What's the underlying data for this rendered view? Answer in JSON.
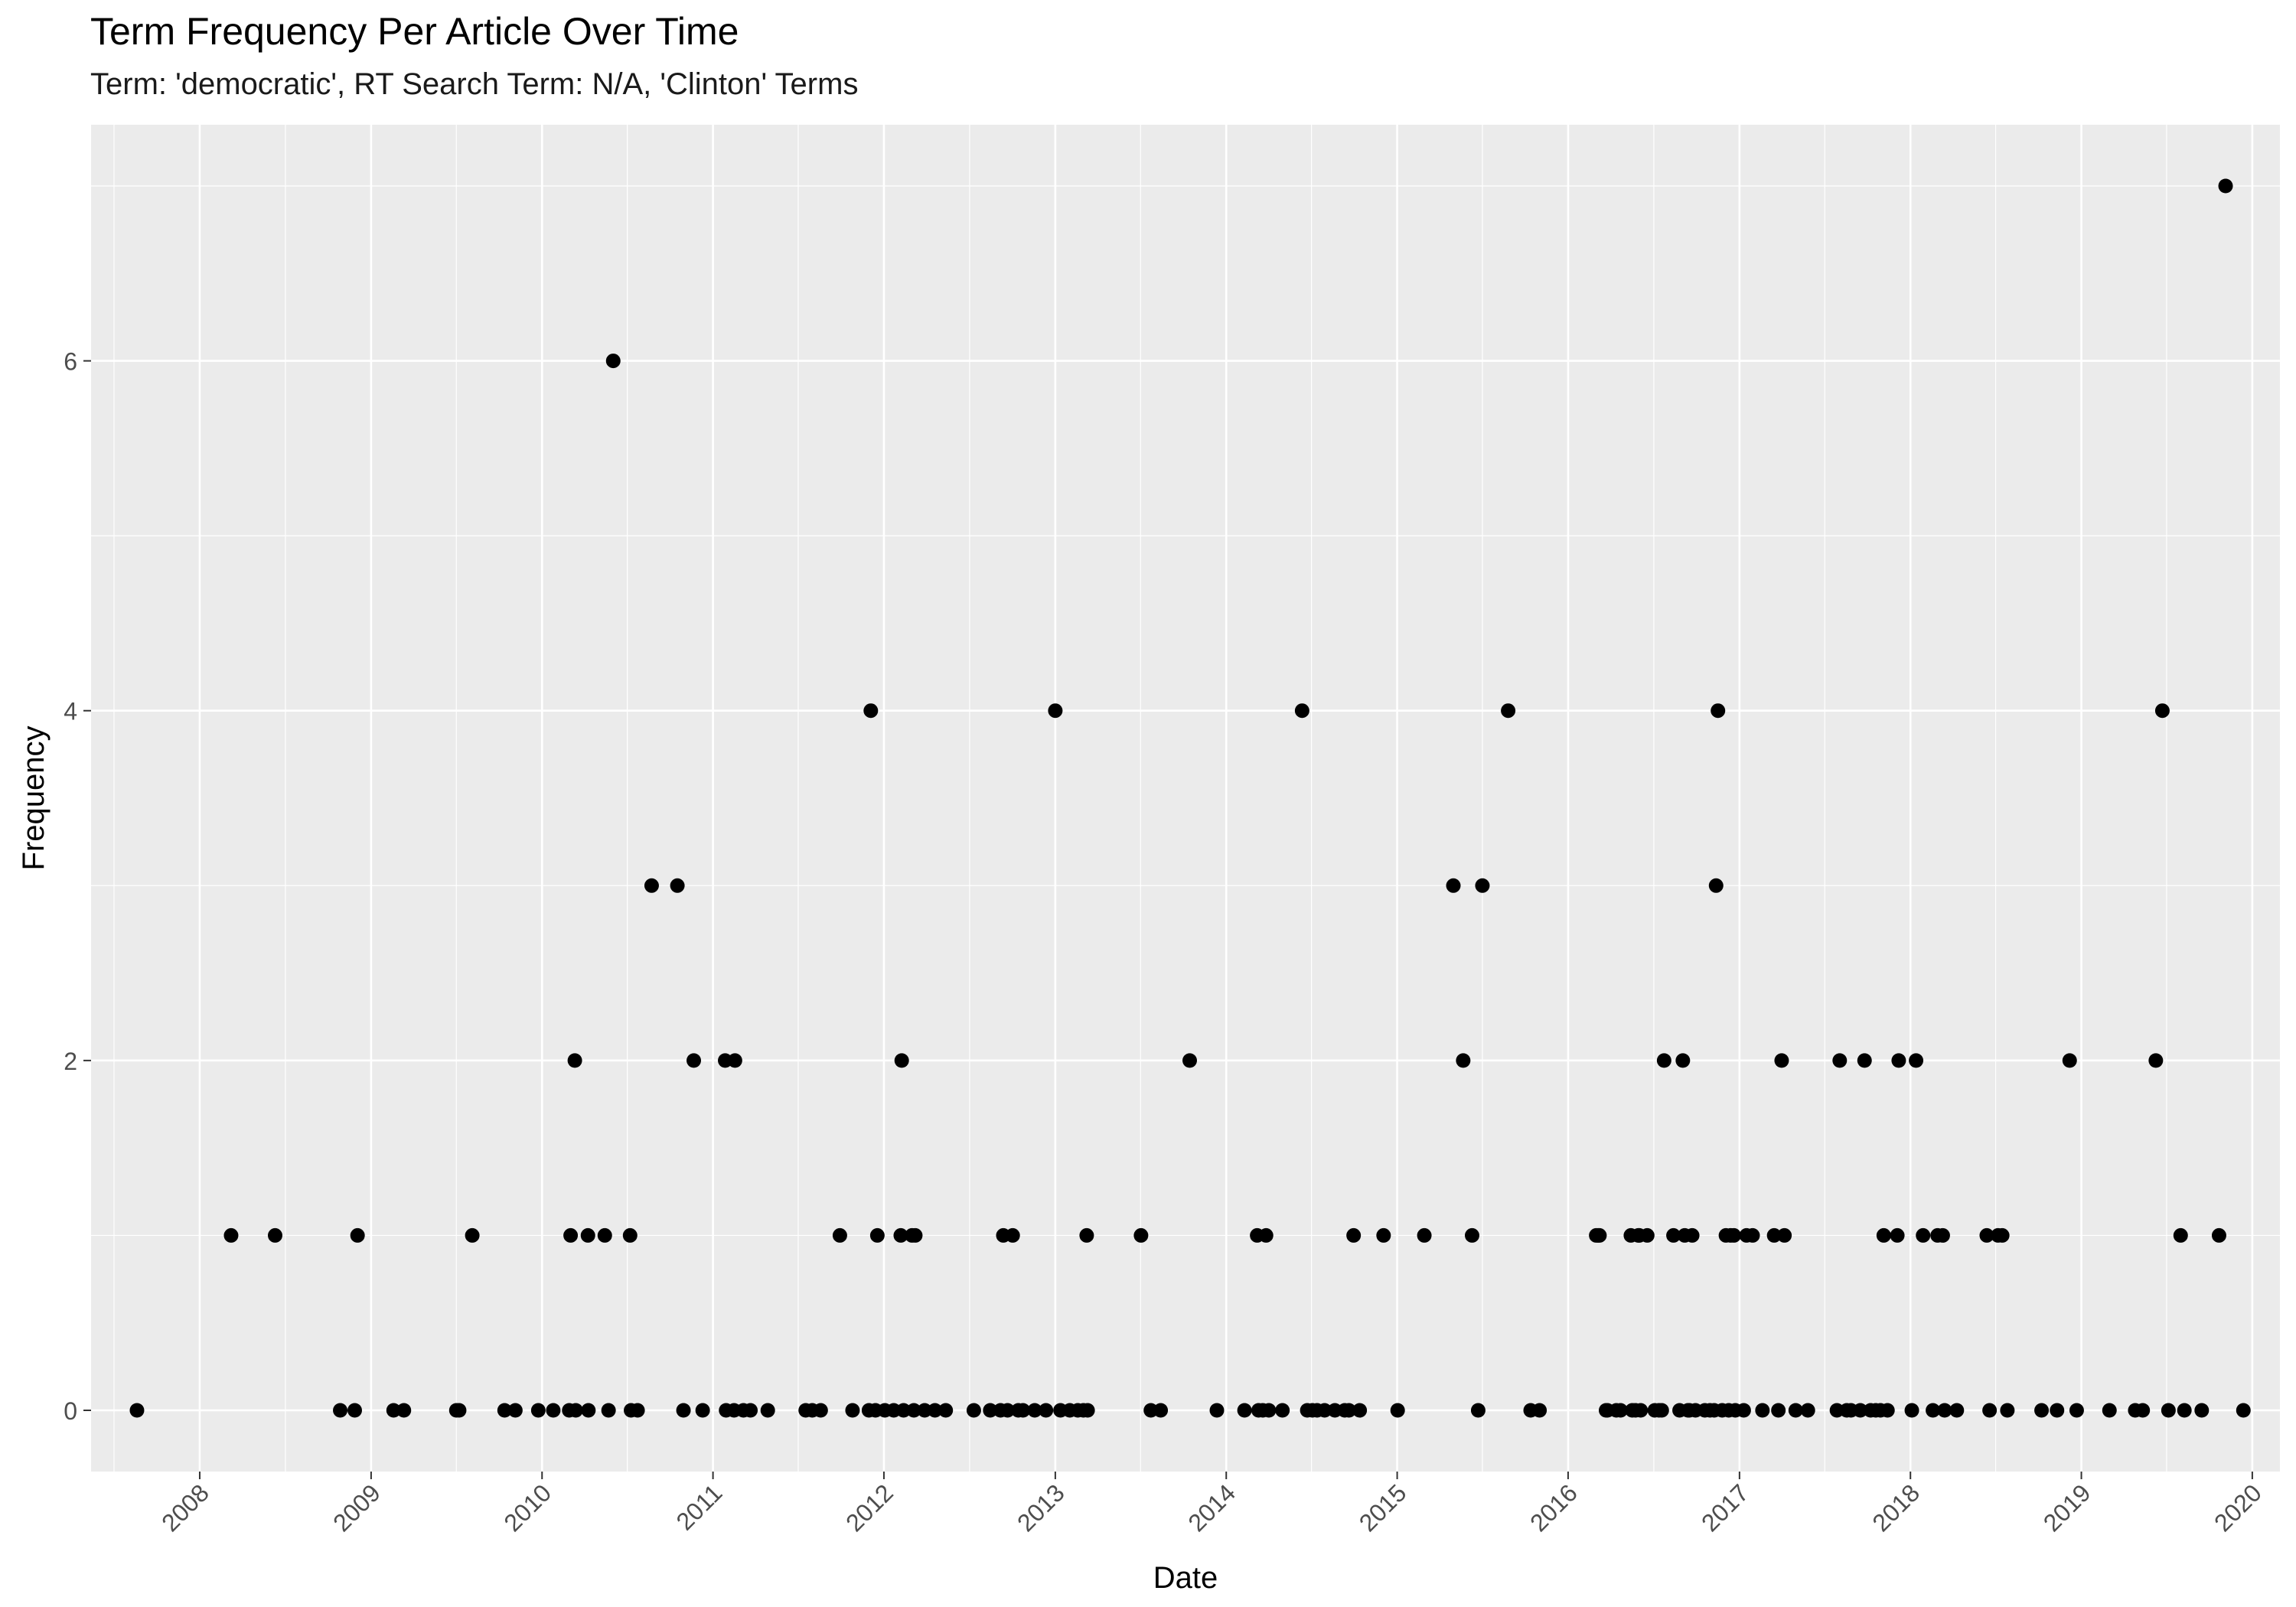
{
  "chart_data": {
    "type": "scatter",
    "title": "Term Frequency Per Article Over Time",
    "subtitle": "Term: 'democratic', RT Search Term: N/A, 'Clinton' Terms",
    "xlabel": "Date",
    "ylabel": "Frequency",
    "x_type": "date",
    "xlim": [
      "2007-05-14",
      "2020-02-29"
    ],
    "ylim": [
      -0.35,
      7.35
    ],
    "x_ticks": [
      "2008",
      "2009",
      "2010",
      "2011",
      "2012",
      "2013",
      "2014",
      "2015",
      "2016",
      "2017",
      "2018",
      "2019",
      "2020"
    ],
    "y_ticks": [
      "0",
      "2",
      "4",
      "6"
    ],
    "grid": true,
    "legend": "none",
    "colors": {
      "panel": "#EBEBEB",
      "grid": "#FFFFFF",
      "point": "#000000",
      "axis_text": "#4D4D4D"
    },
    "series": [
      {
        "points": [
          [
            "2007-08-20",
            0
          ],
          [
            "2008-03-08",
            1
          ],
          [
            "2008-06-10",
            1
          ],
          [
            "2008-10-27",
            0
          ],
          [
            "2008-11-27",
            0
          ],
          [
            "2008-12-03",
            1
          ],
          [
            "2009-02-18",
            0
          ],
          [
            "2009-03-12",
            0
          ],
          [
            "2009-07-02",
            0
          ],
          [
            "2009-07-08",
            0
          ],
          [
            "2009-08-05",
            1
          ],
          [
            "2009-10-13",
            0
          ],
          [
            "2009-11-05",
            0
          ],
          [
            "2009-12-24",
            0
          ],
          [
            "2010-01-25",
            0
          ],
          [
            "2010-02-28",
            0
          ],
          [
            "2010-03-03",
            1
          ],
          [
            "2010-03-12",
            2
          ],
          [
            "2010-03-14",
            0
          ],
          [
            "2010-04-09",
            1
          ],
          [
            "2010-04-10",
            0
          ],
          [
            "2010-05-15",
            1
          ],
          [
            "2010-05-23",
            0
          ],
          [
            "2010-06-02",
            6
          ],
          [
            "2010-07-08",
            1
          ],
          [
            "2010-07-10",
            0
          ],
          [
            "2010-07-24",
            0
          ],
          [
            "2010-08-23",
            3
          ],
          [
            "2010-10-17",
            3
          ],
          [
            "2010-10-30",
            0
          ],
          [
            "2010-11-21",
            2
          ],
          [
            "2010-12-10",
            0
          ],
          [
            "2011-01-27",
            2
          ],
          [
            "2011-01-29",
            0
          ],
          [
            "2011-02-15",
            0
          ],
          [
            "2011-02-17",
            2
          ],
          [
            "2011-03-07",
            0
          ],
          [
            "2011-03-22",
            0
          ],
          [
            "2011-04-28",
            0
          ],
          [
            "2011-07-18",
            0
          ],
          [
            "2011-08-01",
            0
          ],
          [
            "2011-08-19",
            0
          ],
          [
            "2011-09-29",
            1
          ],
          [
            "2011-10-26",
            0
          ],
          [
            "2011-11-30",
            0
          ],
          [
            "2011-12-04",
            4
          ],
          [
            "2011-12-14",
            0
          ],
          [
            "2011-12-18",
            1
          ],
          [
            "2012-01-03",
            0
          ],
          [
            "2012-01-22",
            0
          ],
          [
            "2012-02-06",
            1
          ],
          [
            "2012-02-08",
            2
          ],
          [
            "2012-02-12",
            0
          ],
          [
            "2012-03-01",
            1
          ],
          [
            "2012-03-05",
            0
          ],
          [
            "2012-03-08",
            1
          ],
          [
            "2012-03-28",
            0
          ],
          [
            "2012-04-19",
            0
          ],
          [
            "2012-05-12",
            0
          ],
          [
            "2012-07-11",
            0
          ],
          [
            "2012-08-15",
            0
          ],
          [
            "2012-09-06",
            0
          ],
          [
            "2012-09-12",
            1
          ],
          [
            "2012-09-21",
            0
          ],
          [
            "2012-10-02",
            1
          ],
          [
            "2012-10-14",
            0
          ],
          [
            "2012-10-24",
            0
          ],
          [
            "2012-11-18",
            0
          ],
          [
            "2012-12-12",
            0
          ],
          [
            "2013-01-01",
            4
          ],
          [
            "2013-01-12",
            0
          ],
          [
            "2013-02-01",
            0
          ],
          [
            "2013-02-18",
            0
          ],
          [
            "2013-03-02",
            0
          ],
          [
            "2013-03-09",
            1
          ],
          [
            "2013-03-11",
            0
          ],
          [
            "2013-07-03",
            1
          ],
          [
            "2013-07-24",
            0
          ],
          [
            "2013-08-14",
            0
          ],
          [
            "2013-10-15",
            2
          ],
          [
            "2013-12-12",
            0
          ],
          [
            "2014-02-09",
            0
          ],
          [
            "2014-03-08",
            1
          ],
          [
            "2014-03-11",
            0
          ],
          [
            "2014-03-20",
            0
          ],
          [
            "2014-03-27",
            1
          ],
          [
            "2014-04-02",
            0
          ],
          [
            "2014-05-01",
            0
          ],
          [
            "2014-06-12",
            4
          ],
          [
            "2014-06-23",
            0
          ],
          [
            "2014-07-04",
            0
          ],
          [
            "2014-07-14",
            0
          ],
          [
            "2014-07-30",
            0
          ],
          [
            "2014-08-21",
            0
          ],
          [
            "2014-09-11",
            0
          ],
          [
            "2014-09-20",
            0
          ],
          [
            "2014-09-30",
            1
          ],
          [
            "2014-10-13",
            0
          ],
          [
            "2014-12-03",
            1
          ],
          [
            "2015-01-02",
            0
          ],
          [
            "2015-02-28",
            1
          ],
          [
            "2015-05-01",
            3
          ],
          [
            "2015-05-22",
            2
          ],
          [
            "2015-06-10",
            1
          ],
          [
            "2015-06-23",
            0
          ],
          [
            "2015-07-02",
            3
          ],
          [
            "2015-08-26",
            4
          ],
          [
            "2015-10-13",
            0
          ],
          [
            "2015-11-01",
            0
          ],
          [
            "2016-03-01",
            1
          ],
          [
            "2016-03-05",
            1
          ],
          [
            "2016-03-08",
            1
          ],
          [
            "2016-03-22",
            0
          ],
          [
            "2016-03-25",
            0
          ],
          [
            "2016-04-13",
            0
          ],
          [
            "2016-04-22",
            0
          ],
          [
            "2016-05-14",
            1
          ],
          [
            "2016-05-17",
            0
          ],
          [
            "2016-05-24",
            0
          ],
          [
            "2016-05-30",
            1
          ],
          [
            "2016-06-01",
            1
          ],
          [
            "2016-06-04",
            0
          ],
          [
            "2016-06-18",
            1
          ],
          [
            "2016-07-04",
            0
          ],
          [
            "2016-07-13",
            0
          ],
          [
            "2016-07-19",
            0
          ],
          [
            "2016-07-24",
            2
          ],
          [
            "2016-08-13",
            1
          ],
          [
            "2016-08-26",
            0
          ],
          [
            "2016-09-02",
            2
          ],
          [
            "2016-09-06",
            1
          ],
          [
            "2016-09-13",
            0
          ],
          [
            "2016-09-16",
            0
          ],
          [
            "2016-09-22",
            1
          ],
          [
            "2016-09-29",
            0
          ],
          [
            "2016-10-19",
            0
          ],
          [
            "2016-10-30",
            0
          ],
          [
            "2016-11-08",
            0
          ],
          [
            "2016-11-12",
            3
          ],
          [
            "2016-11-16",
            4
          ],
          [
            "2016-11-25",
            0
          ],
          [
            "2016-12-03",
            1
          ],
          [
            "2016-12-09",
            0
          ],
          [
            "2016-12-13",
            1
          ],
          [
            "2016-12-20",
            1
          ],
          [
            "2016-12-23",
            0
          ],
          [
            "2017-01-10",
            0
          ],
          [
            "2017-01-16",
            1
          ],
          [
            "2017-01-29",
            1
          ],
          [
            "2017-02-19",
            0
          ],
          [
            "2017-03-16",
            1
          ],
          [
            "2017-03-25",
            0
          ],
          [
            "2017-04-01",
            2
          ],
          [
            "2017-04-07",
            1
          ],
          [
            "2017-05-01",
            0
          ],
          [
            "2017-05-27",
            0
          ],
          [
            "2017-07-28",
            0
          ],
          [
            "2017-08-03",
            2
          ],
          [
            "2017-08-18",
            0
          ],
          [
            "2017-08-27",
            0
          ],
          [
            "2017-09-16",
            0
          ],
          [
            "2017-09-25",
            2
          ],
          [
            "2017-10-08",
            0
          ],
          [
            "2017-10-19",
            0
          ],
          [
            "2017-10-29",
            0
          ],
          [
            "2017-11-05",
            1
          ],
          [
            "2017-11-13",
            0
          ],
          [
            "2017-12-04",
            1
          ],
          [
            "2017-12-07",
            2
          ],
          [
            "2018-01-04",
            0
          ],
          [
            "2018-01-13",
            2
          ],
          [
            "2018-01-28",
            1
          ],
          [
            "2018-02-18",
            0
          ],
          [
            "2018-02-28",
            1
          ],
          [
            "2018-03-11",
            1
          ],
          [
            "2018-03-15",
            0
          ],
          [
            "2018-04-10",
            0
          ],
          [
            "2018-06-13",
            1
          ],
          [
            "2018-06-19",
            0
          ],
          [
            "2018-07-07",
            1
          ],
          [
            "2018-07-16",
            1
          ],
          [
            "2018-07-27",
            0
          ],
          [
            "2018-10-08",
            0
          ],
          [
            "2018-11-10",
            0
          ],
          [
            "2018-12-07",
            2
          ],
          [
            "2018-12-22",
            0
          ],
          [
            "2019-03-02",
            0
          ],
          [
            "2019-04-26",
            0
          ],
          [
            "2019-05-12",
            0
          ],
          [
            "2019-06-09",
            2
          ],
          [
            "2019-06-23",
            4
          ],
          [
            "2019-07-06",
            0
          ],
          [
            "2019-08-01",
            1
          ],
          [
            "2019-08-09",
            0
          ],
          [
            "2019-09-15",
            0
          ],
          [
            "2019-10-22",
            1
          ],
          [
            "2019-11-05",
            7
          ],
          [
            "2019-12-13",
            0
          ]
        ]
      }
    ]
  }
}
